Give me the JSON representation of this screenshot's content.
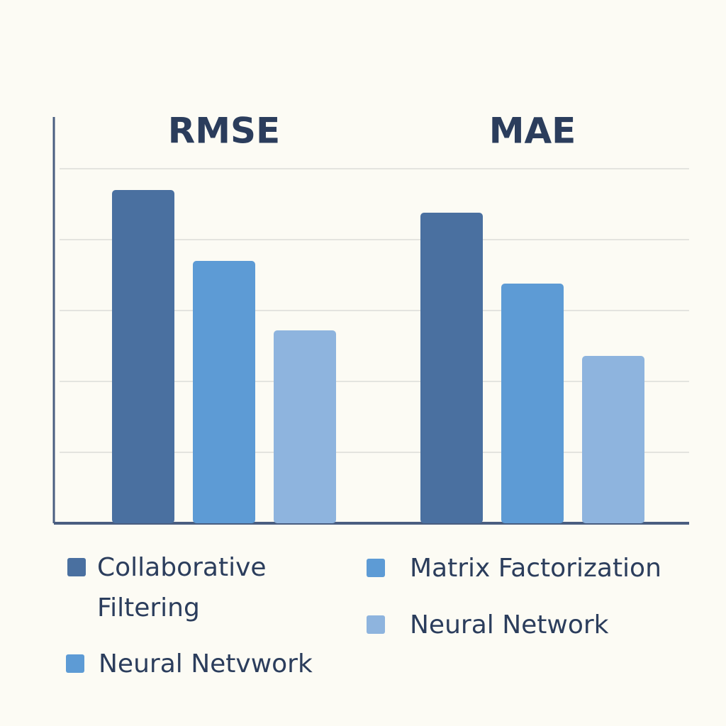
{
  "chart_data": {
    "type": "bar",
    "categories": [
      "RMSE",
      "MAE"
    ],
    "series": [
      {
        "name": "Collaborative Filtering",
        "color": "#4a70a0",
        "values": [
          4.7,
          4.38
        ]
      },
      {
        "name": "Matrix Factorization",
        "color": "#5d9bd5",
        "values": [
          3.7,
          3.38
        ]
      },
      {
        "name": "Neural Network",
        "color": "#8eb4de",
        "values": [
          2.72,
          2.36
        ]
      }
    ],
    "extra_legend": [
      {
        "name": "Neural Netvwork",
        "color": "#5d9bd5"
      }
    ],
    "ylim": [
      0,
      5.73
    ],
    "yticks": [
      1,
      2,
      3,
      4,
      5
    ],
    "grid": true
  }
}
